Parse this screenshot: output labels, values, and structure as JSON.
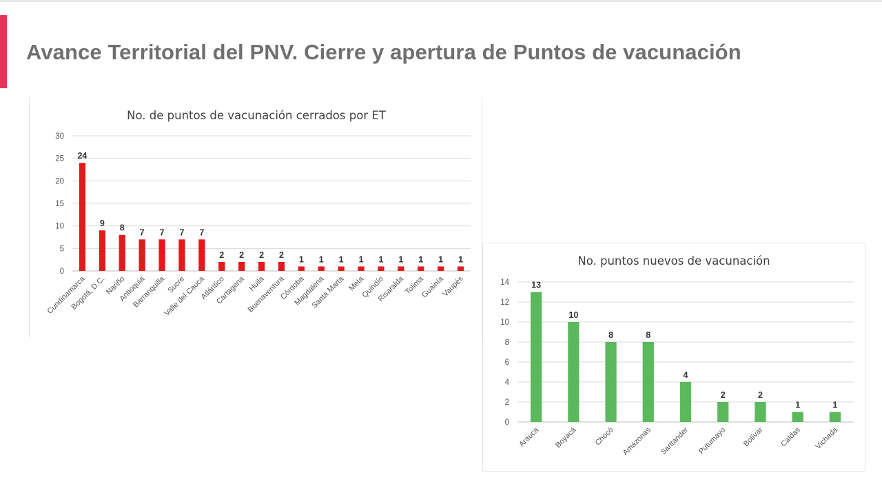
{
  "slide": {
    "title": "Avance Territorial del PNV. Cierre y apertura de Puntos de vacunación",
    "accent_color": "#e8325a"
  },
  "chart_data": [
    {
      "type": "bar",
      "title": "No. de puntos de vacunación cerrados por ET",
      "categories": [
        "Cundinamarca",
        "Bogotá, D.C.",
        "Nariño",
        "Antioquia",
        "Barranquilla",
        "Sucre",
        "Valle del Cauca",
        "Atlántico",
        "Cartagena",
        "Huila",
        "Buenaventura",
        "Córdoba",
        "Magdalena",
        "Santa Marta",
        "Meta",
        "Quindío",
        "Risaralda",
        "Tolima",
        "Guainía",
        "Vaupés"
      ],
      "values": [
        24,
        9,
        8,
        7,
        7,
        7,
        7,
        2,
        2,
        2,
        2,
        1,
        1,
        1,
        1,
        1,
        1,
        1,
        1,
        1
      ],
      "ylim": [
        0,
        30
      ],
      "yticks": [
        0,
        5,
        10,
        15,
        20,
        25,
        30
      ],
      "xlabel": "",
      "ylabel": "",
      "color": "#e31a1c",
      "grid": true,
      "data_labels": true
    },
    {
      "type": "bar",
      "title": "No. puntos nuevos de vacunación",
      "categories": [
        "Arauca",
        "Boyacá",
        "Chocó",
        "Amazonas",
        "Santander",
        "Putumayo",
        "Bolívar",
        "Caldas",
        "Vichada"
      ],
      "values": [
        13,
        10,
        8,
        8,
        4,
        2,
        2,
        1,
        1
      ],
      "ylim": [
        0,
        14
      ],
      "yticks": [
        0,
        2,
        4,
        6,
        8,
        10,
        12,
        14
      ],
      "xlabel": "",
      "ylabel": "",
      "color": "#5cb85c",
      "grid": true,
      "data_labels": true
    }
  ]
}
